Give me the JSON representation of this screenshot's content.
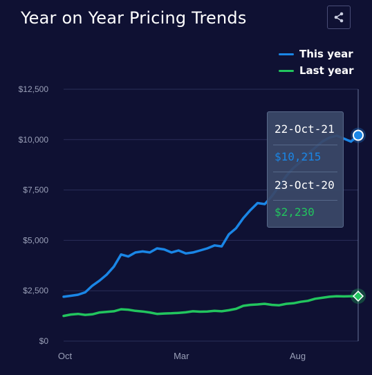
{
  "header": {
    "title": "Year on Year Pricing Trends",
    "share_icon": "share-icon"
  },
  "colors": {
    "background": "#0f1133",
    "this_year": "#1a86e6",
    "last_year": "#22c55e",
    "grid": "#2a2e5a",
    "axis_text": "#9aa0b8"
  },
  "tooltip": {
    "this_year_date": "22-Oct-21",
    "this_year_value": "$10,215",
    "last_year_date": "23-Oct-20",
    "last_year_value": "$2,230"
  },
  "chart_data": {
    "type": "line",
    "title": "Year on Year Pricing Trends",
    "xlabel": "",
    "ylabel": "",
    "ylim": [
      0,
      12500
    ],
    "yticks": [
      0,
      2500,
      5000,
      7500,
      10000,
      12500
    ],
    "ytick_labels": [
      "$0",
      "$2,500",
      "$5,000",
      "$7,500",
      "$10,000",
      "$12,500"
    ],
    "xtick_labels": [
      "Oct",
      "Mar",
      "Aug"
    ],
    "grid": true,
    "legend_position": "top-right",
    "series": [
      {
        "name": "This year",
        "color": "#1a86e6",
        "values": [
          2200,
          2250,
          2300,
          2420,
          2750,
          3000,
          3300,
          3700,
          4300,
          4200,
          4400,
          4450,
          4400,
          4600,
          4550,
          4400,
          4500,
          4350,
          4400,
          4500,
          4600,
          4750,
          4700,
          5300,
          5600,
          6100,
          6500,
          6850,
          6800,
          7200,
          7700,
          8200,
          8600,
          8900,
          9300,
          9600,
          9900,
          10100,
          10200,
          10050,
          9900,
          10215
        ]
      },
      {
        "name": "Last year",
        "color": "#22c55e",
        "values": [
          1250,
          1320,
          1350,
          1300,
          1330,
          1420,
          1450,
          1480,
          1580,
          1560,
          1500,
          1470,
          1420,
          1350,
          1370,
          1380,
          1400,
          1430,
          1480,
          1460,
          1470,
          1500,
          1480,
          1530,
          1600,
          1750,
          1800,
          1820,
          1850,
          1800,
          1780,
          1850,
          1880,
          1950,
          2000,
          2100,
          2150,
          2200,
          2230,
          2220,
          2230,
          2230
        ]
      }
    ]
  }
}
